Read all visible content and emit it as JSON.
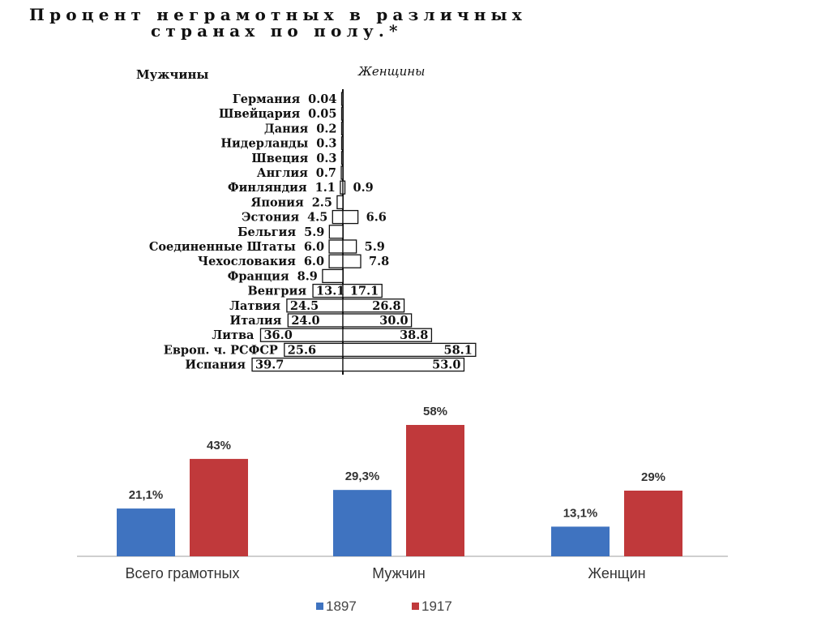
{
  "chart_data": [
    {
      "type": "bar",
      "orientation": "horizontal-butterfly",
      "title_lines": [
        "Процент неграмотных в различных",
        "странах по полу.*"
      ],
      "left_label": "Мужчины",
      "right_label": "Женщины",
      "rows": [
        {
          "country": "Германия",
          "men": "0.04",
          "women": ""
        },
        {
          "country": "Швейцария",
          "men": "0.05",
          "women": ""
        },
        {
          "country": "Дания",
          "men": "0.2",
          "women": ""
        },
        {
          "country": "Нидерланды",
          "men": "0.3",
          "women": ""
        },
        {
          "country": "Швеция",
          "men": "0.3",
          "women": ""
        },
        {
          "country": "Англия",
          "men": "0.7",
          "women": ""
        },
        {
          "country": "Финляндия",
          "men": "1.1",
          "women": "0.9"
        },
        {
          "country": "Япония",
          "men": "2.5",
          "women": ""
        },
        {
          "country": "Эстония",
          "men": "4.5",
          "women": "6.6"
        },
        {
          "country": "Бельгия",
          "men": "5.9",
          "women": ""
        },
        {
          "country": "Соединенные Штаты",
          "men": "6.0",
          "women": "5.9"
        },
        {
          "country": "Чехословакия",
          "men": "6.0",
          "women": "7.8"
        },
        {
          "country": "Франция",
          "men": "8.9",
          "women": ""
        },
        {
          "country": "Венгрия",
          "men": "13.1",
          "women": "17.1"
        },
        {
          "country": "Латвия",
          "men": "24.5",
          "women": "26.8"
        },
        {
          "country": "Италия",
          "men": "24.0",
          "women": "30.0"
        },
        {
          "country": "Литва",
          "men": "36.0",
          "women": "38.8"
        },
        {
          "country": "Европ. ч. РСФСР",
          "men": "25.6",
          "women": "58.1"
        },
        {
          "country": "Испания",
          "men": "39.7",
          "women": "53.0"
        }
      ]
    },
    {
      "type": "bar",
      "categories": [
        "Всего грамотных",
        "Мужчин",
        "Женщин"
      ],
      "series": [
        {
          "name": "1897",
          "values": [
            21.1,
            29.3,
            13.1
          ],
          "labels": [
            "21,1%",
            "29,3%",
            "13,1%"
          ],
          "color": "#3f73c0"
        },
        {
          "name": "1917",
          "values": [
            43,
            58,
            29
          ],
          "labels": [
            "43%",
            "58%",
            "29%"
          ],
          "color": "#c0393b"
        }
      ],
      "ylim": [
        0,
        58
      ],
      "legend_position": "bottom"
    }
  ]
}
